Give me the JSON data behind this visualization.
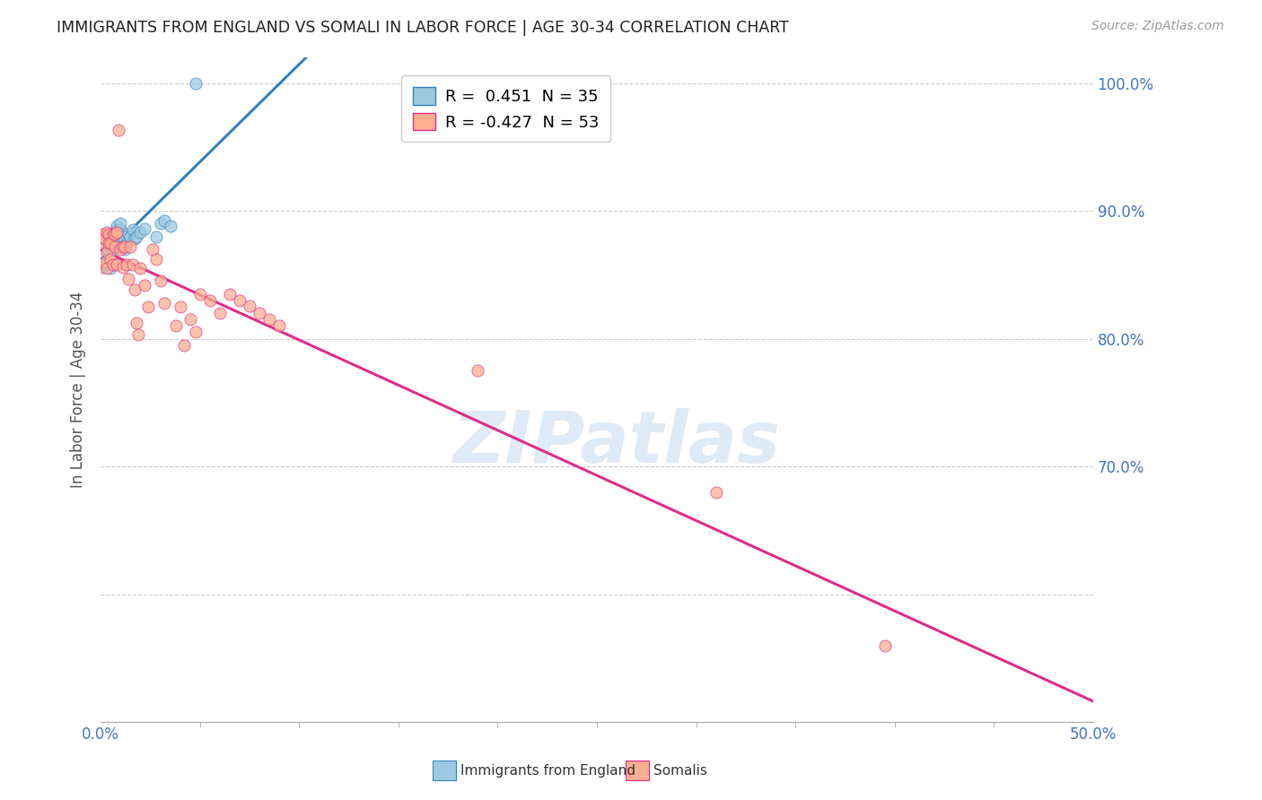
{
  "title": "IMMIGRANTS FROM ENGLAND VS SOMALI IN LABOR FORCE | AGE 30-34 CORRELATION CHART",
  "source": "Source: ZipAtlas.com",
  "ylabel": "In Labor Force | Age 30-34",
  "legend_england": "Immigrants from England",
  "legend_somalis": "Somalis",
  "R_england": 0.451,
  "N_england": 35,
  "R_somali": -0.427,
  "N_somali": 53,
  "color_england": "#9ecae1",
  "color_somali": "#fcae91",
  "color_england_line": "#3182bd",
  "color_somali_line": "#de2d88",
  "watermark_color": "#c8ddf0",
  "england_x": [
    0.001,
    0.002,
    0.003,
    0.003,
    0.004,
    0.005,
    0.005,
    0.005,
    0.006,
    0.006,
    0.007,
    0.007,
    0.007,
    0.008,
    0.008,
    0.008,
    0.009,
    0.009,
    0.01,
    0.01,
    0.011,
    0.012,
    0.013,
    0.014,
    0.015,
    0.016,
    0.017,
    0.018,
    0.02,
    0.022,
    0.028,
    0.03,
    0.032,
    0.035,
    0.048
  ],
  "england_y": [
    0.856,
    0.858,
    0.87,
    0.875,
    0.87,
    0.875,
    0.88,
    0.855,
    0.87,
    0.878,
    0.88,
    0.875,
    0.883,
    0.885,
    0.888,
    0.882,
    0.876,
    0.88,
    0.885,
    0.89,
    0.88,
    0.87,
    0.875,
    0.882,
    0.88,
    0.885,
    0.878,
    0.88,
    0.883,
    0.886,
    0.88,
    0.89,
    0.892,
    0.888,
    1.0
  ],
  "somali_x": [
    0.001,
    0.001,
    0.002,
    0.002,
    0.003,
    0.003,
    0.003,
    0.004,
    0.004,
    0.005,
    0.005,
    0.006,
    0.006,
    0.007,
    0.007,
    0.008,
    0.008,
    0.009,
    0.01,
    0.011,
    0.011,
    0.012,
    0.013,
    0.014,
    0.015,
    0.016,
    0.017,
    0.018,
    0.019,
    0.02,
    0.022,
    0.024,
    0.026,
    0.028,
    0.03,
    0.032,
    0.038,
    0.04,
    0.042,
    0.045,
    0.048,
    0.05,
    0.055,
    0.06,
    0.065,
    0.07,
    0.075,
    0.08,
    0.085,
    0.09,
    0.19,
    0.31,
    0.395
  ],
  "somali_y": [
    0.882,
    0.875,
    0.878,
    0.86,
    0.883,
    0.868,
    0.855,
    0.882,
    0.875,
    0.875,
    0.862,
    0.882,
    0.858,
    0.882,
    0.872,
    0.883,
    0.858,
    0.963,
    0.87,
    0.872,
    0.856,
    0.872,
    0.858,
    0.847,
    0.872,
    0.858,
    0.838,
    0.812,
    0.803,
    0.855,
    0.842,
    0.825,
    0.87,
    0.862,
    0.845,
    0.828,
    0.81,
    0.825,
    0.795,
    0.815,
    0.805,
    0.835,
    0.83,
    0.82,
    0.835,
    0.83,
    0.826,
    0.82,
    0.815,
    0.81,
    0.775,
    0.68,
    0.56
  ],
  "xlim": [
    0.0,
    0.5
  ],
  "ylim": [
    0.5,
    1.02
  ],
  "ytick_positions": [
    0.5,
    0.6,
    0.7,
    0.8,
    0.9,
    1.0
  ],
  "ytick_labels": [
    "",
    "",
    "70.0%",
    "80.0%",
    "90.0%",
    "100.0%"
  ],
  "xtick_minor_positions": [
    0.05,
    0.1,
    0.15,
    0.2,
    0.25,
    0.3,
    0.35,
    0.4,
    0.45
  ]
}
